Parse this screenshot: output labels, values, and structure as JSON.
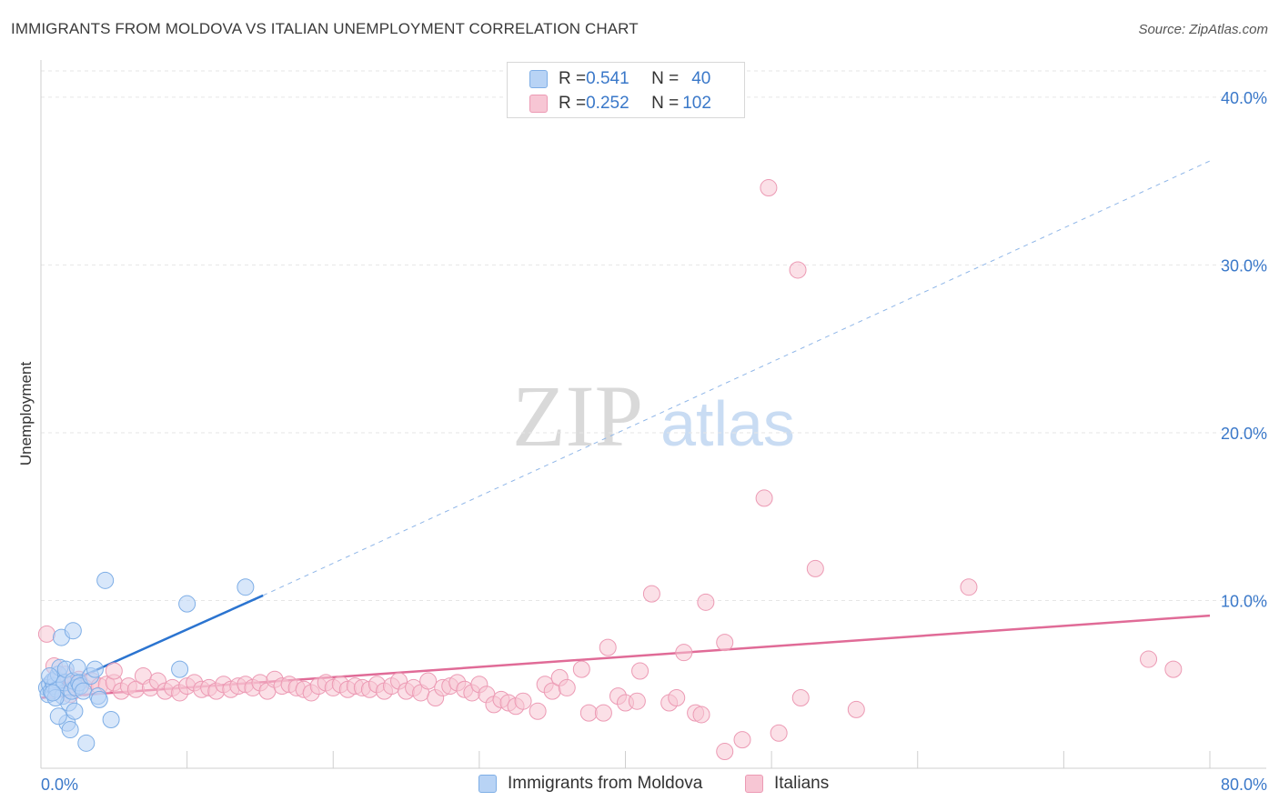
{
  "title": "IMMIGRANTS FROM MOLDOVA VS ITALIAN UNEMPLOYMENT CORRELATION CHART",
  "source": "Source: ZipAtlas.com",
  "watermark": {
    "zip": "ZIP",
    "atlas": "atlas"
  },
  "colors": {
    "blue_fill": "#b8d3f5",
    "blue_stroke": "#7eaee6",
    "blue_line": "#2b74d0",
    "pink_fill": "#f7c6d4",
    "pink_stroke": "#ec9ab4",
    "pink_line": "#e06b97",
    "accent_text": "#3a78c9"
  },
  "legend_top": {
    "rows": [
      {
        "r_label": "R = ",
        "r_value": "0.541",
        "n_label": "N = ",
        "n_value": "40"
      },
      {
        "r_label": "R = ",
        "r_value": "0.252",
        "n_label": "N = ",
        "n_value": "102"
      }
    ]
  },
  "chart_data": {
    "type": "scatter",
    "title": "IMMIGRANTS FROM MOLDOVA VS ITALIAN UNEMPLOYMENT CORRELATION CHART",
    "xlabel": "",
    "ylabel": "Unemployment",
    "xlim": [
      0,
      80
    ],
    "ylim": [
      0,
      42
    ],
    "x_tick_labels": [
      "0.0%",
      "80.0%"
    ],
    "y_ticks": [
      10,
      20,
      30,
      40
    ],
    "y_tick_labels": [
      "10.0%",
      "20.0%",
      "30.0%",
      "40.0%"
    ],
    "grid": true,
    "legend_position": "top-center",
    "series": [
      {
        "name": "Immigrants from Moldova",
        "r": 0.541,
        "n": 40,
        "trend": {
          "x0": 0.3,
          "y0": 4.5,
          "x1": 15.2,
          "y1": 10.3,
          "x_dash_end": 80,
          "y_dash_end": 36.2
        },
        "points": [
          {
            "x": 0.4,
            "y": 4.8
          },
          {
            "x": 0.5,
            "y": 4.4
          },
          {
            "x": 0.6,
            "y": 5.0
          },
          {
            "x": 0.7,
            "y": 4.6
          },
          {
            "x": 0.8,
            "y": 5.2
          },
          {
            "x": 0.9,
            "y": 4.9
          },
          {
            "x": 1.0,
            "y": 5.3
          },
          {
            "x": 1.1,
            "y": 4.7
          },
          {
            "x": 1.2,
            "y": 5.6
          },
          {
            "x": 1.3,
            "y": 6.0
          },
          {
            "x": 1.4,
            "y": 7.8
          },
          {
            "x": 1.5,
            "y": 4.3
          },
          {
            "x": 1.6,
            "y": 5.1
          },
          {
            "x": 1.7,
            "y": 5.9
          },
          {
            "x": 1.8,
            "y": 2.7
          },
          {
            "x": 1.9,
            "y": 3.9
          },
          {
            "x": 2.0,
            "y": 2.3
          },
          {
            "x": 2.1,
            "y": 4.6
          },
          {
            "x": 2.2,
            "y": 5.2
          },
          {
            "x": 2.3,
            "y": 3.4
          },
          {
            "x": 2.4,
            "y": 4.8
          },
          {
            "x": 2.5,
            "y": 6.0
          },
          {
            "x": 2.6,
            "y": 5.1
          },
          {
            "x": 2.7,
            "y": 4.9
          },
          {
            "x": 2.2,
            "y": 8.2
          },
          {
            "x": 2.9,
            "y": 4.6
          },
          {
            "x": 3.1,
            "y": 1.5
          },
          {
            "x": 3.4,
            "y": 5.5
          },
          {
            "x": 3.7,
            "y": 5.9
          },
          {
            "x": 3.9,
            "y": 4.3
          },
          {
            "x": 4.0,
            "y": 4.1
          },
          {
            "x": 4.4,
            "y": 11.2
          },
          {
            "x": 4.8,
            "y": 2.9
          },
          {
            "x": 1.2,
            "y": 3.1
          },
          {
            "x": 0.6,
            "y": 5.5
          },
          {
            "x": 1.0,
            "y": 4.2
          },
          {
            "x": 9.5,
            "y": 5.9
          },
          {
            "x": 10.0,
            "y": 9.8
          },
          {
            "x": 14.0,
            "y": 10.8
          },
          {
            "x": 0.8,
            "y": 4.5
          }
        ]
      },
      {
        "name": "Italians",
        "r": 0.252,
        "n": 102,
        "trend": {
          "x0": 0.0,
          "y0": 4.2,
          "x1": 80.0,
          "y1": 9.1
        },
        "points": [
          {
            "x": 0.4,
            "y": 8.0
          },
          {
            "x": 0.9,
            "y": 6.1
          },
          {
            "x": 1.3,
            "y": 5.2
          },
          {
            "x": 1.7,
            "y": 5.6
          },
          {
            "x": 2.1,
            "y": 5.0
          },
          {
            "x": 2.6,
            "y": 5.3
          },
          {
            "x": 3.0,
            "y": 4.8
          },
          {
            "x": 3.5,
            "y": 5.2
          },
          {
            "x": 4.0,
            "y": 4.9
          },
          {
            "x": 4.5,
            "y": 5.0
          },
          {
            "x": 5.0,
            "y": 5.1
          },
          {
            "x": 5.5,
            "y": 4.6
          },
          {
            "x": 6.0,
            "y": 4.9
          },
          {
            "x": 6.5,
            "y": 4.7
          },
          {
            "x": 7.0,
            "y": 5.5
          },
          {
            "x": 7.5,
            "y": 4.8
          },
          {
            "x": 8.0,
            "y": 5.2
          },
          {
            "x": 8.5,
            "y": 4.6
          },
          {
            "x": 9.0,
            "y": 4.8
          },
          {
            "x": 9.5,
            "y": 4.5
          },
          {
            "x": 10.0,
            "y": 4.9
          },
          {
            "x": 10.5,
            "y": 5.1
          },
          {
            "x": 11.0,
            "y": 4.7
          },
          {
            "x": 11.5,
            "y": 4.8
          },
          {
            "x": 12.0,
            "y": 4.6
          },
          {
            "x": 12.5,
            "y": 5.0
          },
          {
            "x": 13.0,
            "y": 4.7
          },
          {
            "x": 13.5,
            "y": 4.9
          },
          {
            "x": 14.0,
            "y": 5.0
          },
          {
            "x": 14.5,
            "y": 4.8
          },
          {
            "x": 15.0,
            "y": 5.1
          },
          {
            "x": 15.5,
            "y": 4.6
          },
          {
            "x": 16.0,
            "y": 5.3
          },
          {
            "x": 16.5,
            "y": 4.9
          },
          {
            "x": 17.0,
            "y": 5.0
          },
          {
            "x": 17.5,
            "y": 4.8
          },
          {
            "x": 18.0,
            "y": 4.7
          },
          {
            "x": 18.5,
            "y": 4.5
          },
          {
            "x": 19.0,
            "y": 4.9
          },
          {
            "x": 19.5,
            "y": 5.1
          },
          {
            "x": 20.0,
            "y": 4.8
          },
          {
            "x": 20.5,
            "y": 5.0
          },
          {
            "x": 21.0,
            "y": 4.7
          },
          {
            "x": 21.5,
            "y": 4.9
          },
          {
            "x": 22.0,
            "y": 4.8
          },
          {
            "x": 22.5,
            "y": 4.7
          },
          {
            "x": 23.0,
            "y": 5.0
          },
          {
            "x": 23.5,
            "y": 4.6
          },
          {
            "x": 24.0,
            "y": 4.9
          },
          {
            "x": 24.5,
            "y": 5.2
          },
          {
            "x": 25.0,
            "y": 4.6
          },
          {
            "x": 25.5,
            "y": 4.8
          },
          {
            "x": 26.0,
            "y": 4.5
          },
          {
            "x": 26.5,
            "y": 5.2
          },
          {
            "x": 27.0,
            "y": 4.2
          },
          {
            "x": 27.5,
            "y": 4.8
          },
          {
            "x": 28.0,
            "y": 4.9
          },
          {
            "x": 28.5,
            "y": 5.1
          },
          {
            "x": 29.0,
            "y": 4.7
          },
          {
            "x": 29.5,
            "y": 4.5
          },
          {
            "x": 30.0,
            "y": 5.0
          },
          {
            "x": 30.5,
            "y": 4.4
          },
          {
            "x": 31.0,
            "y": 3.8
          },
          {
            "x": 31.5,
            "y": 4.1
          },
          {
            "x": 32.0,
            "y": 3.9
          },
          {
            "x": 32.5,
            "y": 3.7
          },
          {
            "x": 33.0,
            "y": 4.0
          },
          {
            "x": 34.0,
            "y": 3.4
          },
          {
            "x": 34.5,
            "y": 5.0
          },
          {
            "x": 35.0,
            "y": 4.6
          },
          {
            "x": 35.5,
            "y": 5.4
          },
          {
            "x": 36.0,
            "y": 4.8
          },
          {
            "x": 37.0,
            "y": 5.9
          },
          {
            "x": 37.5,
            "y": 3.3
          },
          {
            "x": 38.5,
            "y": 3.3
          },
          {
            "x": 38.8,
            "y": 7.2
          },
          {
            "x": 39.5,
            "y": 4.3
          },
          {
            "x": 40.0,
            "y": 3.9
          },
          {
            "x": 40.8,
            "y": 4.0
          },
          {
            "x": 41.0,
            "y": 5.8
          },
          {
            "x": 41.8,
            "y": 10.4
          },
          {
            "x": 43.0,
            "y": 3.9
          },
          {
            "x": 43.5,
            "y": 4.2
          },
          {
            "x": 44.0,
            "y": 6.9
          },
          {
            "x": 44.8,
            "y": 3.3
          },
          {
            "x": 45.2,
            "y": 3.2
          },
          {
            "x": 45.5,
            "y": 9.9
          },
          {
            "x": 46.8,
            "y": 7.5
          },
          {
            "x": 46.8,
            "y": 1.0
          },
          {
            "x": 48.0,
            "y": 1.7
          },
          {
            "x": 49.8,
            "y": 34.6
          },
          {
            "x": 50.5,
            "y": 2.1
          },
          {
            "x": 49.5,
            "y": 16.1
          },
          {
            "x": 51.8,
            "y": 29.7
          },
          {
            "x": 52.0,
            "y": 4.2
          },
          {
            "x": 53.0,
            "y": 11.9
          },
          {
            "x": 55.8,
            "y": 3.5
          },
          {
            "x": 63.5,
            "y": 10.8
          },
          {
            "x": 75.8,
            "y": 6.5
          },
          {
            "x": 77.5,
            "y": 5.9
          },
          {
            "x": 5.0,
            "y": 5.8
          },
          {
            "x": 2.0,
            "y": 4.4
          }
        ]
      }
    ]
  }
}
